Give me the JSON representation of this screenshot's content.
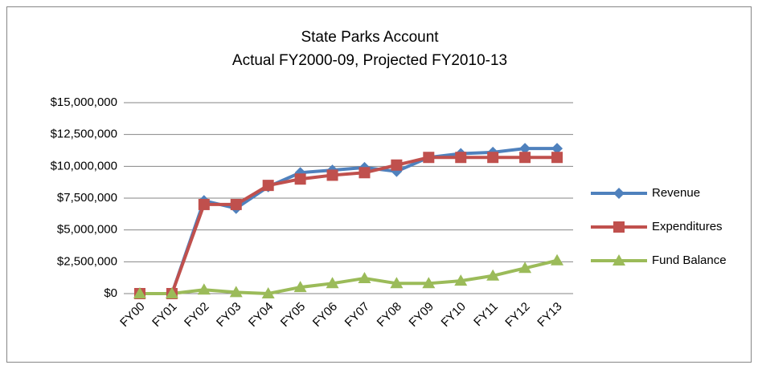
{
  "chart_data": {
    "type": "line",
    "title": "State Parks Account",
    "subtitle": "Actual FY2000-09, Projected FY2010-13",
    "categories": [
      "FY00",
      "FY01",
      "FY02",
      "FY03",
      "FY04",
      "FY05",
      "FY06",
      "FY07",
      "FY08",
      "FY09",
      "FY10",
      "FY11",
      "FY12",
      "FY13"
    ],
    "series": [
      {
        "name": "Revenue",
        "color": "#4f81bd",
        "marker": "diamond",
        "values": [
          0,
          0,
          7300000,
          6700000,
          8400000,
          9500000,
          9700000,
          9900000,
          9600000,
          10700000,
          11000000,
          11100000,
          11400000,
          11400000
        ]
      },
      {
        "name": "Expenditures",
        "color": "#c0504d",
        "marker": "square",
        "values": [
          0,
          0,
          7000000,
          7000000,
          8500000,
          9000000,
          9300000,
          9500000,
          10100000,
          10700000,
          10700000,
          10700000,
          10700000,
          10700000
        ]
      },
      {
        "name": "Fund Balance",
        "color": "#9bbb59",
        "marker": "triangle",
        "values": [
          0,
          0,
          300000,
          100000,
          0,
          500000,
          800000,
          1200000,
          800000,
          800000,
          1000000,
          1400000,
          2000000,
          2600000
        ]
      }
    ],
    "ylim": [
      0,
      15000000
    ],
    "yticks": [
      {
        "value": 0,
        "label": "$0"
      },
      {
        "value": 2500000,
        "label": "$2,500,000"
      },
      {
        "value": 5000000,
        "label": "$5,000,000"
      },
      {
        "value": 7500000,
        "label": "$7,500,000"
      },
      {
        "value": 10000000,
        "label": "$10,000,000"
      },
      {
        "value": 12500000,
        "label": "$12,500,000"
      },
      {
        "value": 15000000,
        "label": "$15,000,000"
      }
    ],
    "grid": true,
    "legend": "right"
  }
}
